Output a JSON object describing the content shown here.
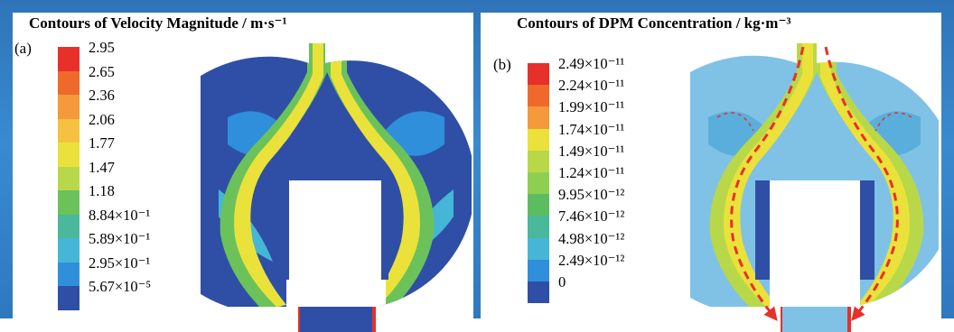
{
  "panel_a": {
    "title": "Contours of Velocity Magnitude / m·s⁻¹",
    "tag": "(a)",
    "legend": [
      {
        "label": "2.95",
        "color": "#e8302a"
      },
      {
        "label": "2.65",
        "color": "#ef6a2a"
      },
      {
        "label": "2.36",
        "color": "#f49a3a"
      },
      {
        "label": "2.06",
        "color": "#f4c23e"
      },
      {
        "label": "1.77",
        "color": "#eae23a"
      },
      {
        "label": "1.47",
        "color": "#b8d84a"
      },
      {
        "label": "1.18",
        "color": "#6cc25a"
      },
      {
        "label": "8.84×10⁻¹",
        "color": "#4ab89a"
      },
      {
        "label": "5.89×10⁻¹",
        "color": "#45b6d6"
      },
      {
        "label": "2.95×10⁻¹",
        "color": "#2f8fda"
      },
      {
        "label": "5.67×10⁻⁵",
        "color": "#2f4fa6"
      }
    ]
  },
  "panel_b": {
    "title": "Contours of DPM Concentration / kg·m⁻³",
    "tag": "(b)",
    "legend": [
      {
        "label": "2.49×10⁻¹¹",
        "color": "#e8302a"
      },
      {
        "label": "2.24×10⁻¹¹",
        "color": "#ef6a2a"
      },
      {
        "label": "1.99×10⁻¹¹",
        "color": "#f49a3a"
      },
      {
        "label": "1.74×10⁻¹¹",
        "color": "#eae23a"
      },
      {
        "label": "1.49×10⁻¹¹",
        "color": "#b8d84a"
      },
      {
        "label": "1.24×10⁻¹¹",
        "color": "#8ecf52"
      },
      {
        "label": "9.95×10⁻¹²",
        "color": "#5cbc62"
      },
      {
        "label": "7.46×10⁻¹²",
        "color": "#4ab89a"
      },
      {
        "label": "4.98×10⁻¹²",
        "color": "#45b6d6"
      },
      {
        "label": "2.49×10⁻¹²",
        "color": "#2f8fda"
      },
      {
        "label": "0",
        "color": "#2f4fa6"
      }
    ]
  }
}
